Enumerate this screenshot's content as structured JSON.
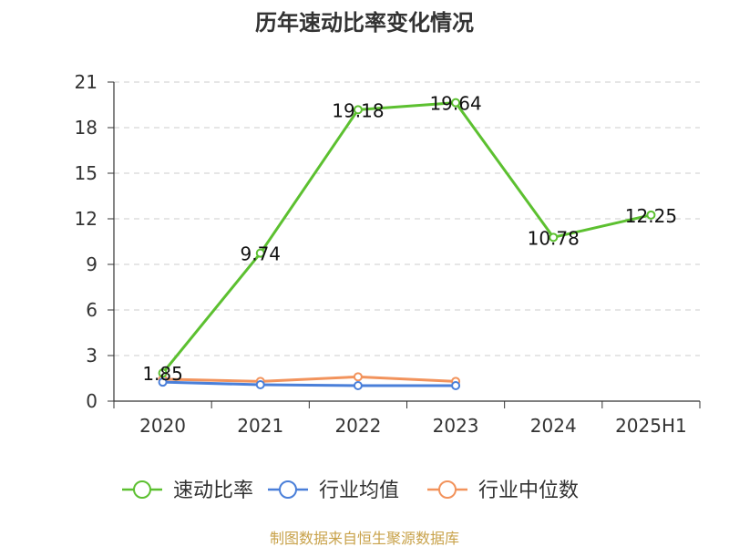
{
  "chart_data": {
    "type": "line",
    "title": "历年速动比率变化情况",
    "categories": [
      "2020",
      "2021",
      "2022",
      "2023",
      "2024",
      "2025H1"
    ],
    "yticks": [
      "0",
      "3",
      "6",
      "9",
      "12",
      "15",
      "18",
      "21"
    ],
    "ylim": [
      0,
      21
    ],
    "grid": true,
    "legend_position": "bottom",
    "series": [
      {
        "name": "速动比率",
        "color": "#5cc030",
        "values": [
          1.85,
          9.74,
          19.18,
          19.64,
          10.78,
          12.25
        ],
        "labels": [
          "1.85",
          "9.74",
          "19.18",
          "19.64",
          "10.78",
          "12.25"
        ]
      },
      {
        "name": "行业均值",
        "color": "#4a7fd9",
        "values": [
          1.25,
          1.08,
          1.02,
          1.02,
          null,
          null
        ]
      },
      {
        "name": "行业中位数",
        "color": "#f2935c",
        "values": [
          1.45,
          1.3,
          1.6,
          1.3,
          null,
          null
        ]
      }
    ],
    "source": "制图数据来自恒生聚源数据库"
  }
}
